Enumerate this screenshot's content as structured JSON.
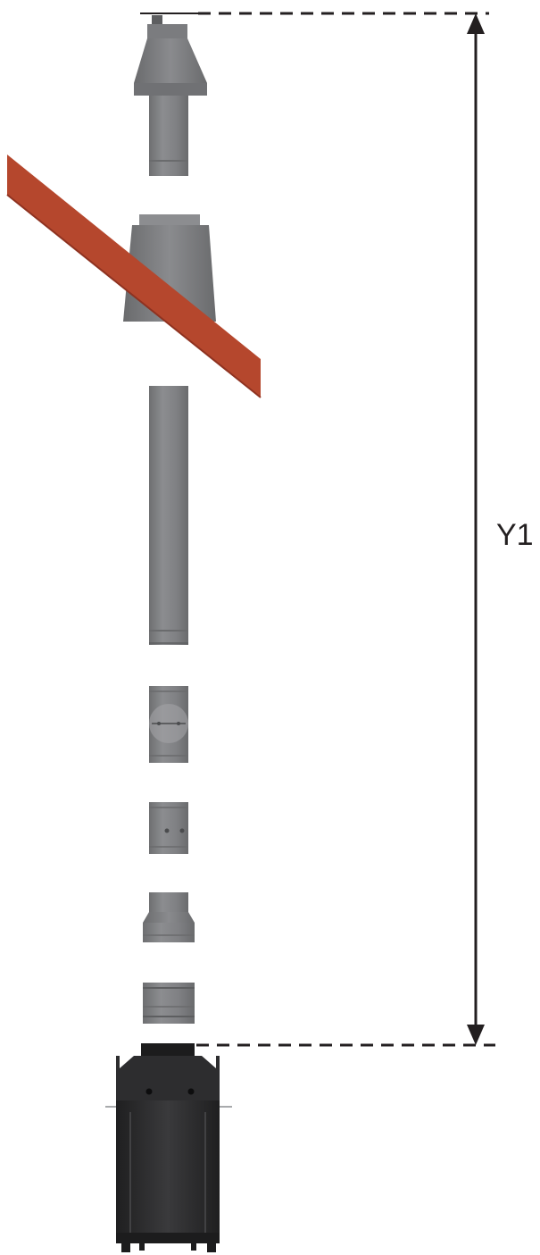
{
  "dimension": {
    "label": "Y1"
  },
  "colors": {
    "pipe": "#808285",
    "pipe_light": "#939598",
    "pipe_dark": "#5d5e60",
    "roof": "#b5472d",
    "roof_dark": "#8e3220",
    "stove": "#2d2d2f",
    "stove_dark": "#1c1c1d",
    "line": "#231f20"
  }
}
